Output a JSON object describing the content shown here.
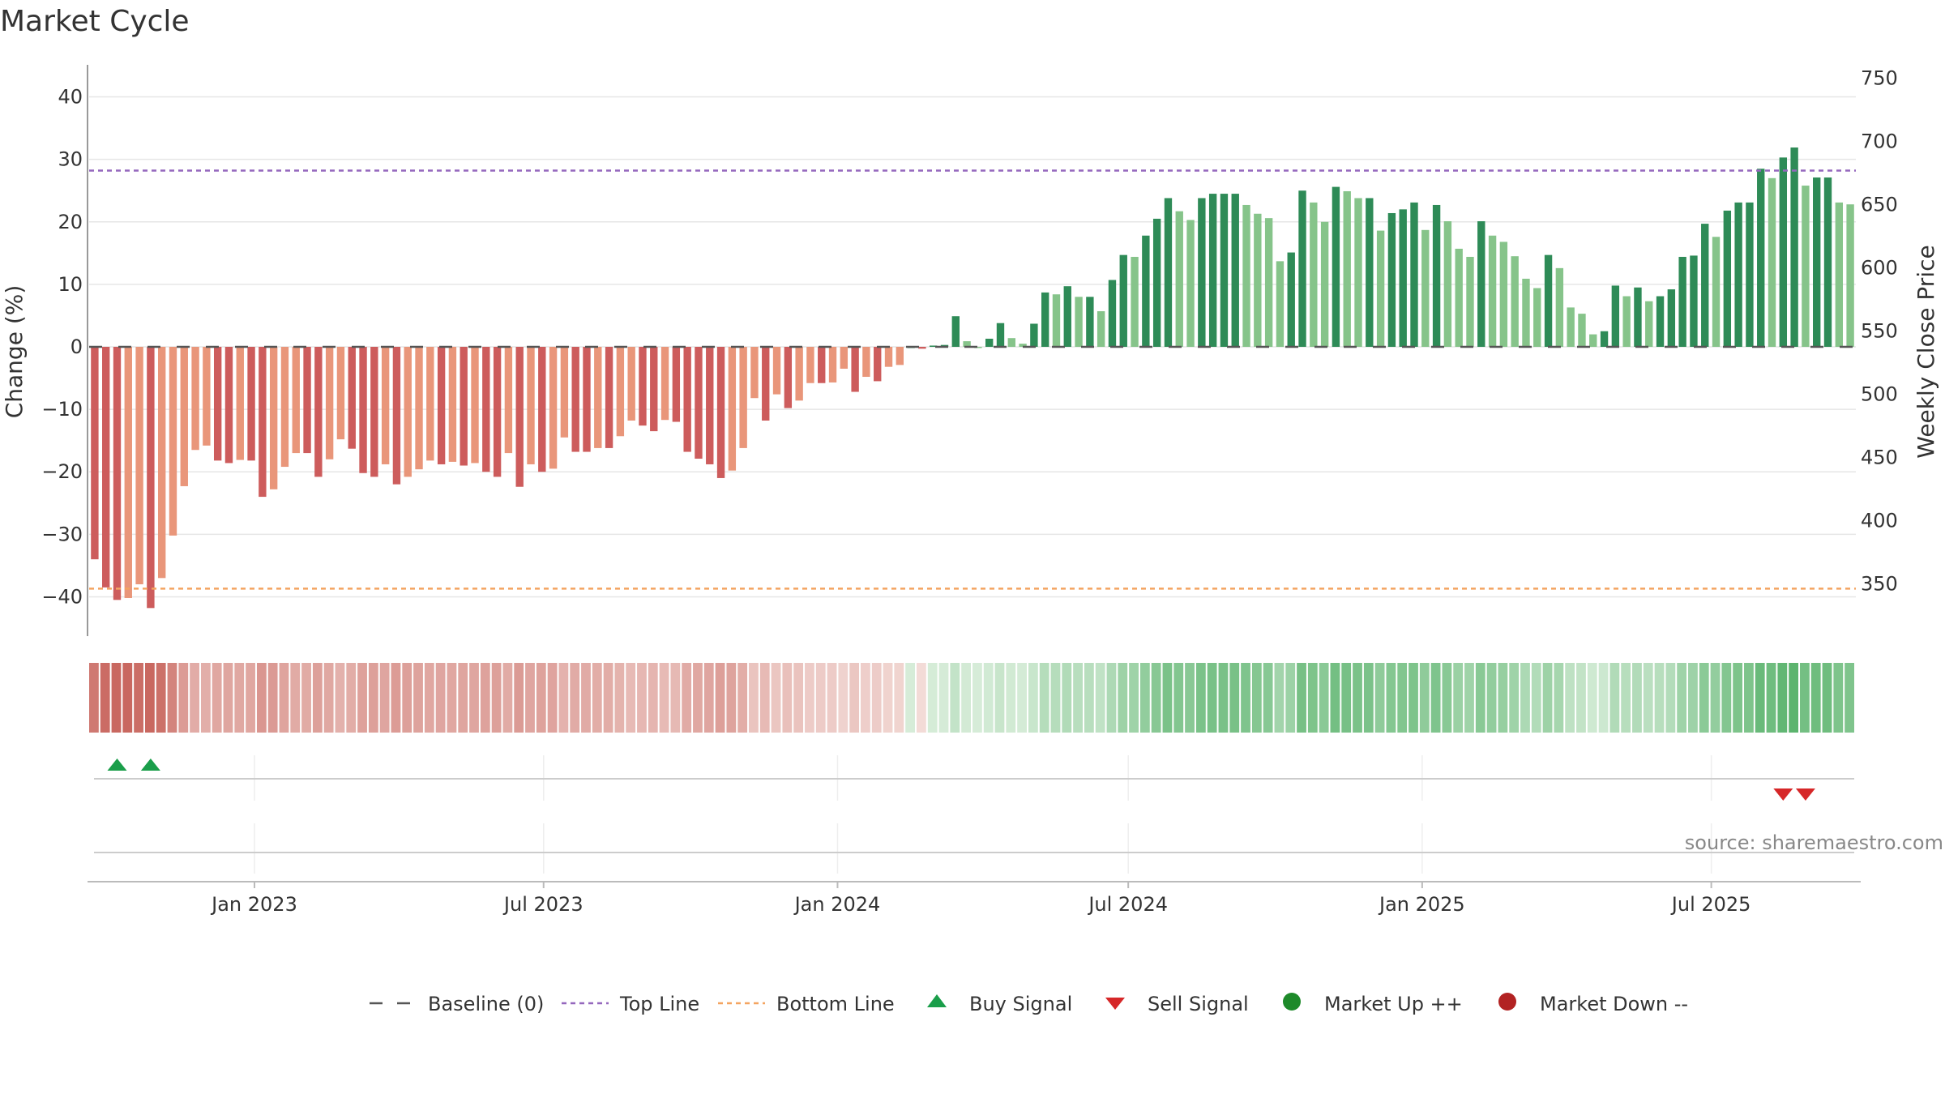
{
  "title": "Market Cycle",
  "source": "source: sharemaestro.com",
  "colors": {
    "up_dark": "#2e8b57",
    "up_light": "#86c48a",
    "down_dark": "#cd5c5c",
    "down_light": "#e9967a",
    "top_line": "#9467bd",
    "bottom_line": "#f4a460",
    "buy": "#1a9e4a",
    "sell": "#d62728",
    "market_up": "#1e8a2a",
    "market_down": "#b22222"
  },
  "chart_data": {
    "type": "bar",
    "title": "Market Cycle",
    "ylabel": "Change (%)",
    "ylabel_right": "Weekly Close Price",
    "ylim": [
      -45,
      45
    ],
    "ylim_right": [
      315,
      760
    ],
    "yticks": [
      40,
      30,
      20,
      10,
      0,
      -10,
      -20,
      -30,
      -40
    ],
    "yticks_right": [
      750,
      700,
      650,
      600,
      550,
      500,
      450,
      400,
      350
    ],
    "x_start": "2022-09-23",
    "x_interval": "weekly",
    "xticks": [
      "Jan 2023",
      "Jul 2023",
      "Jan 2024",
      "Jul 2024",
      "Jan 2025",
      "Jul 2025"
    ],
    "top_line": 28.2,
    "bottom_line": -38.7,
    "grid": true,
    "values": [
      -34,
      -38.5,
      -40.5,
      -40.2,
      -38,
      -41.8,
      -37,
      -30.2,
      -22.3,
      -16.5,
      -15.8,
      -18.2,
      -18.6,
      -18.1,
      -18.2,
      -24,
      -22.8,
      -19.2,
      -17,
      -17,
      -20.8,
      -18,
      -14.8,
      -16.3,
      -20.2,
      -20.8,
      -18.8,
      -22,
      -20.8,
      -19.6,
      -18.2,
      -18.8,
      -18.4,
      -19,
      -18.6,
      -20,
      -20.8,
      -17,
      -22.4,
      -18.8,
      -20,
      -19.5,
      -14.5,
      -16.8,
      -16.8,
      -16.2,
      -16.2,
      -14.3,
      -11.8,
      -12.6,
      -13.5,
      -11.7,
      -12,
      -16.8,
      -17.9,
      -18.8,
      -21,
      -19.8,
      -16.2,
      -8.2,
      -11.8,
      -7.6,
      -9.8,
      -8.6,
      -5.8,
      -5.8,
      -5.7,
      -3.5,
      -7.2,
      -4.8,
      -5.5,
      -3.2,
      -2.9,
      0,
      -0.3,
      0.2,
      0.3,
      4.9,
      0.9,
      0,
      1.3,
      3.8,
      1.4,
      0.5,
      3.7,
      8.7,
      8.4,
      9.7,
      8,
      8,
      5.7,
      10.7,
      14.7,
      14.4,
      17.8,
      20.5,
      23.8,
      21.7,
      20.3,
      23.8,
      24.5,
      24.5,
      24.5,
      22.7,
      21.3,
      20.6,
      13.7,
      15.1,
      25,
      23.1,
      20,
      25.6,
      24.9,
      23.8,
      23.8,
      18.6,
      21.4,
      22,
      23.1,
      18.7,
      22.7,
      20.1,
      15.7,
      14.4,
      20.1,
      17.8,
      16.8,
      14.5,
      10.9,
      9.4,
      14.7,
      12.6,
      6.3,
      5.3,
      2,
      2.5,
      9.8,
      8.1,
      9.5,
      7.3,
      8.1,
      9.2,
      14.4,
      14.6,
      19.7,
      17.6,
      21.8,
      23.1,
      23.1,
      28.5,
      27,
      30.3,
      31.9,
      25.8,
      27.1,
      27.1,
      23.1,
      22.8
    ],
    "buy_signals": [
      2,
      5
    ],
    "sell_signals": [
      151,
      153
    ]
  },
  "legend": {
    "baseline": "Baseline (0)",
    "top_line": "Top Line",
    "bottom_line": "Bottom Line",
    "buy": "Buy Signal",
    "sell": "Sell Signal",
    "market_up": "Market Up ++",
    "market_down": "Market Down --"
  }
}
